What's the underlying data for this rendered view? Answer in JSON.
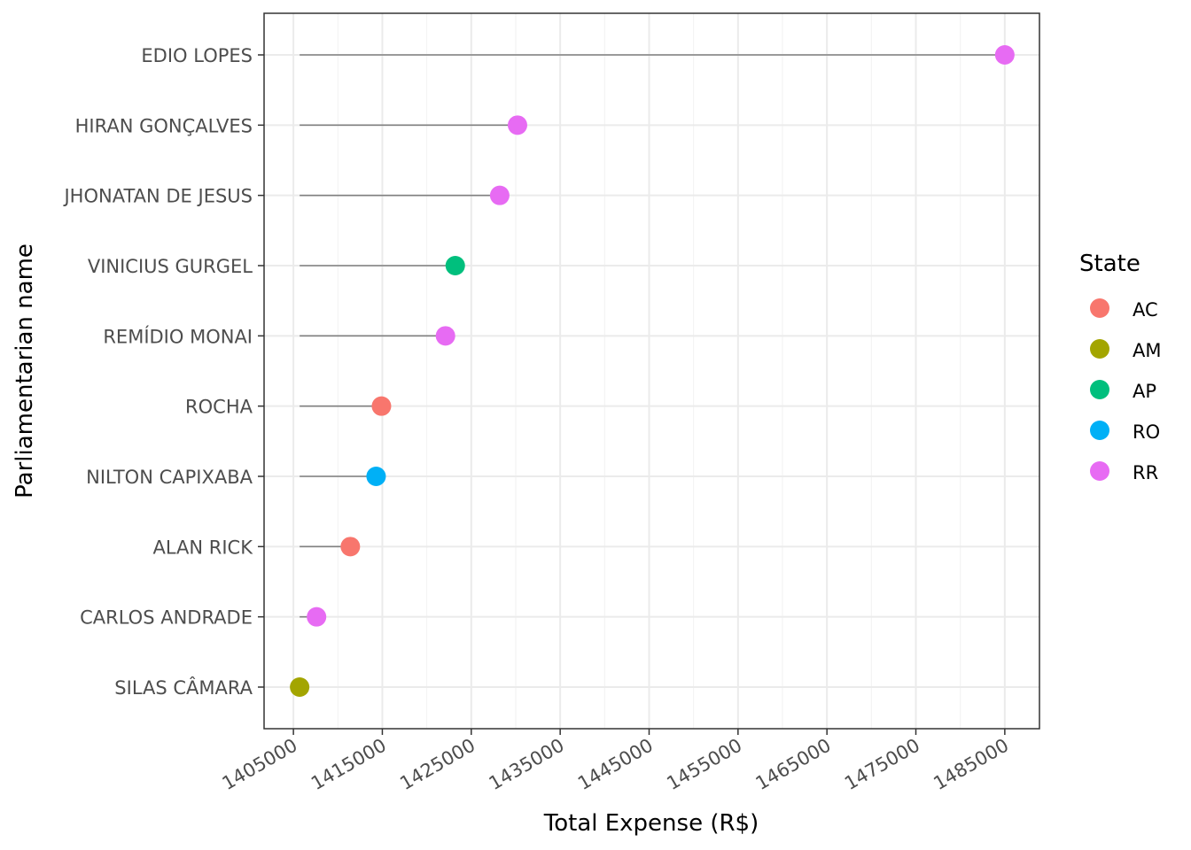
{
  "chart_data": {
    "type": "lollipop",
    "xlabel": "Total Expense (R$)",
    "ylabel": "Parliamentarian name",
    "xlim": [
      1401700,
      1488900
    ],
    "baseline": 1405700,
    "xticks": [
      1405000,
      1415000,
      1425000,
      1435000,
      1445000,
      1455000,
      1465000,
      1475000,
      1485000
    ],
    "xtick_labels": [
      "1405000",
      "1415000",
      "1425000",
      "1435000",
      "1445000",
      "1455000",
      "1465000",
      "1475000",
      "1485000"
    ],
    "categories": [
      "EDIO LOPES",
      "HIRAN GONÇALVES",
      "JHONATAN DE JESUS",
      "VINICIUS GURGEL",
      "REMÍDIO MONAI",
      "ROCHA",
      "NILTON CAPIXABA",
      "ALAN RICK",
      "CARLOS ANDRADE",
      "SILAS CÂMARA"
    ],
    "values": [
      1485000,
      1430200,
      1428200,
      1423200,
      1422100,
      1414900,
      1414300,
      1411400,
      1407600,
      1405700
    ],
    "states": [
      "RR",
      "RR",
      "RR",
      "AP",
      "RR",
      "AC",
      "RO",
      "AC",
      "RR",
      "AM"
    ],
    "legend": {
      "title": "State",
      "position": "right",
      "entries": [
        {
          "label": "AC",
          "color": "#F8766D"
        },
        {
          "label": "AM",
          "color": "#A3A500"
        },
        {
          "label": "AP",
          "color": "#00BF7D"
        },
        {
          "label": "RO",
          "color": "#00B0F6"
        },
        {
          "label": "RR",
          "color": "#E76BF3"
        }
      ]
    },
    "grid": true
  }
}
